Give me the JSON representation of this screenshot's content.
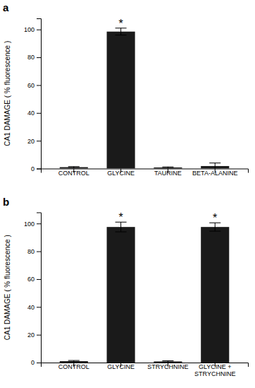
{
  "chart_data": [
    {
      "type": "bar",
      "title": "a",
      "categories": [
        "CONTROL",
        "GLYCINE",
        "TAURINE",
        "BETA-ALANINE"
      ],
      "values": [
        1.0,
        98.5,
        0.8,
        1.8
      ],
      "errors": [
        0.4,
        2.5,
        0.4,
        2.2
      ],
      "annotations": [
        {
          "category": "GLYCINE",
          "text": "*"
        }
      ],
      "color": "#1a1a1a",
      "y_label": "CA1 DAMAGE ( % fluorescence )",
      "ylim": [
        0,
        108
      ],
      "yticks": [
        0,
        20,
        40,
        60,
        80,
        100
      ],
      "grid": false
    },
    {
      "type": "bar",
      "title": "b",
      "categories": [
        "CONTROL",
        "GLYCINE",
        "STRYCHNINE",
        "GLYCINE +\nSTRYCHNINE"
      ],
      "values": [
        1.0,
        97.5,
        0.8,
        97.5
      ],
      "errors": [
        0.5,
        3.5,
        0.5,
        3.0
      ],
      "annotations": [
        {
          "category": "GLYCINE",
          "text": "*"
        },
        {
          "category": "GLYCINE +\nSTRYCHNINE",
          "text": "*"
        }
      ],
      "color": "#1a1a1a",
      "y_label": "CA1 DAMAGE ( % fluorescence )",
      "ylim": [
        0,
        108
      ],
      "yticks": [
        0,
        20,
        40,
        60,
        80,
        100
      ],
      "grid": false
    }
  ]
}
